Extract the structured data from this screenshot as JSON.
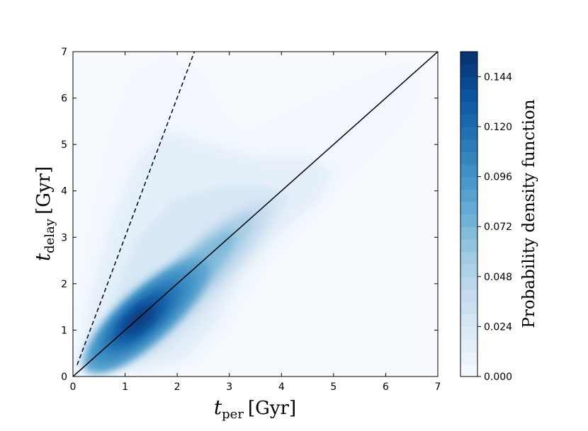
{
  "chart_data": {
    "type": "heatmap",
    "subtype": "filled-contour-kde",
    "xlabel": {
      "symbol": "t",
      "subscript": "per",
      "unit": "[Gyr]"
    },
    "ylabel": {
      "symbol": "t",
      "subscript": "delay",
      "unit": "[Gyr]"
    },
    "xlim": [
      0,
      7
    ],
    "ylim": [
      0,
      7
    ],
    "x_ticks": [
      0,
      1,
      2,
      3,
      4,
      5,
      6,
      7
    ],
    "y_ticks": [
      0,
      1,
      2,
      3,
      4,
      5,
      6,
      7
    ],
    "grid": false,
    "colormap": "Blues",
    "colorbar": {
      "label": "Probability density function",
      "min": 0.0,
      "max": 0.156,
      "levels": 26,
      "tick_values": [
        0.0,
        0.024,
        0.048,
        0.072,
        0.096,
        0.12,
        0.144
      ],
      "tick_labels": [
        "0.000",
        "0.024",
        "0.048",
        "0.072",
        "0.096",
        "0.120",
        "0.144"
      ]
    },
    "density_peak": {
      "x": 1.3,
      "y": 1.25,
      "value": 0.15
    },
    "reference_lines": [
      {
        "style": "solid",
        "relation": "y = x",
        "points": [
          [
            0,
            0
          ],
          [
            7,
            7
          ]
        ]
      },
      {
        "style": "dashed",
        "relation": "y = 3x",
        "points": [
          [
            0.08,
            0.25
          ],
          [
            2.33,
            7
          ]
        ]
      }
    ]
  }
}
